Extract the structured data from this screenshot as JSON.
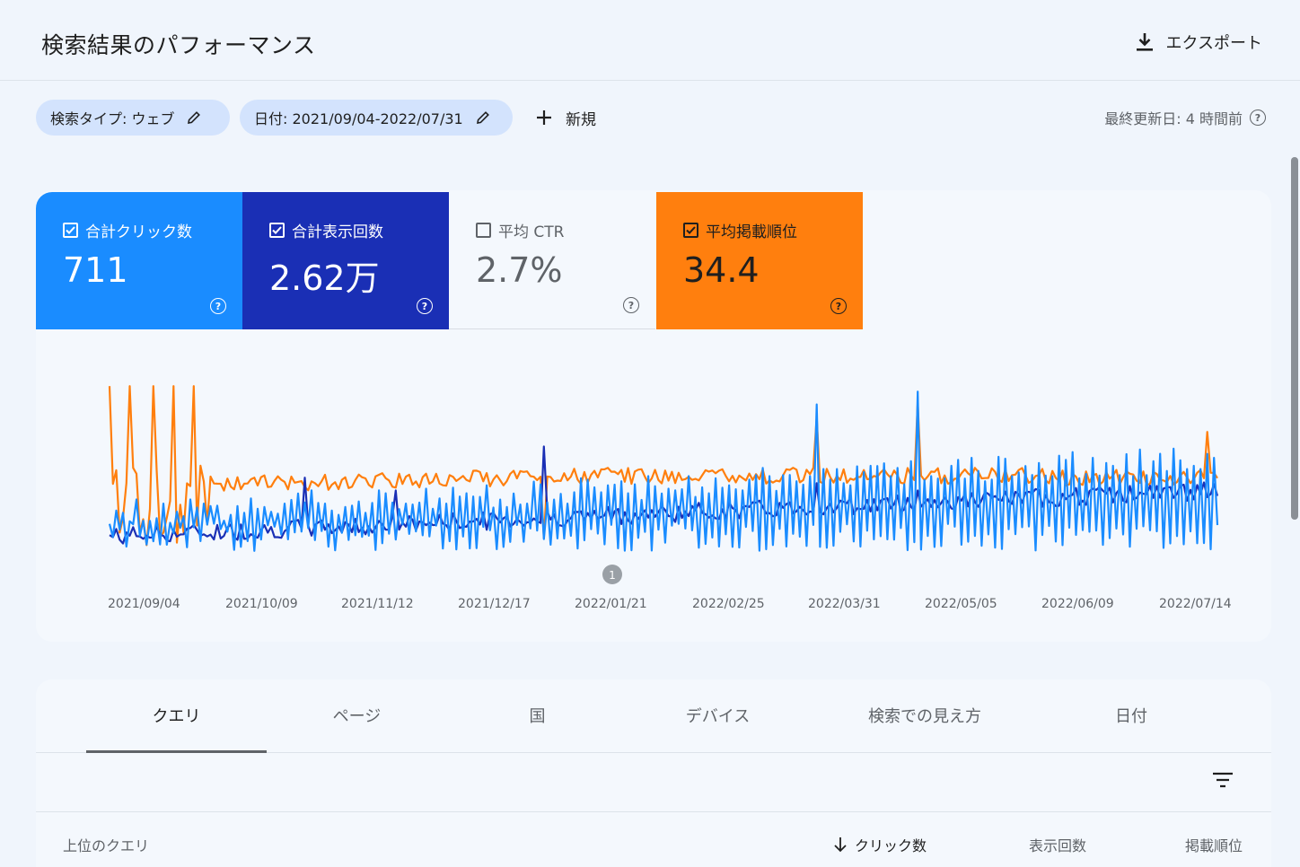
{
  "header": {
    "title": "検索結果のパフォーマンス",
    "export_label": "エクスポート"
  },
  "filters": {
    "search_type": "検索タイプ: ウェブ",
    "date": "日付: 2021/09/04-2022/07/31",
    "new_label": "新規",
    "updated": "最終更新日: 4 時間前"
  },
  "metrics": [
    {
      "label": "合計クリック数",
      "value": "711",
      "checked": true,
      "color": "#1a8cff"
    },
    {
      "label": "合計表示回数",
      "value": "2.62万",
      "checked": true,
      "color": "#1a2fb5"
    },
    {
      "label": "平均 CTR",
      "value": "2.7%",
      "checked": false,
      "color": "#f4f8fd"
    },
    {
      "label": "平均掲載順位",
      "value": "34.4",
      "checked": true,
      "color": "#ff7f0e"
    }
  ],
  "chart_data": {
    "type": "line",
    "x_ticks": [
      "2021/09/04",
      "2021/10/09",
      "2021/11/12",
      "2021/12/17",
      "2022/01/21",
      "2022/02/25",
      "2022/03/31",
      "2022/05/05",
      "2022/06/09",
      "2022/07/14"
    ],
    "annotation_marker": "1",
    "series": [
      {
        "name": "合計クリック数",
        "color": "#1a8cff"
      },
      {
        "name": "合計表示回数",
        "color": "#1a2fb5"
      },
      {
        "name": "平均掲載順位",
        "color": "#ff7f0e"
      }
    ]
  },
  "tabs": [
    "クエリ",
    "ページ",
    "国",
    "デバイス",
    "検索での見え方",
    "日付"
  ],
  "active_tab": 0,
  "table": {
    "columns": {
      "query": "上位のクエリ",
      "clicks": "クリック数",
      "impressions": "表示回数",
      "position": "掲載順位"
    }
  }
}
